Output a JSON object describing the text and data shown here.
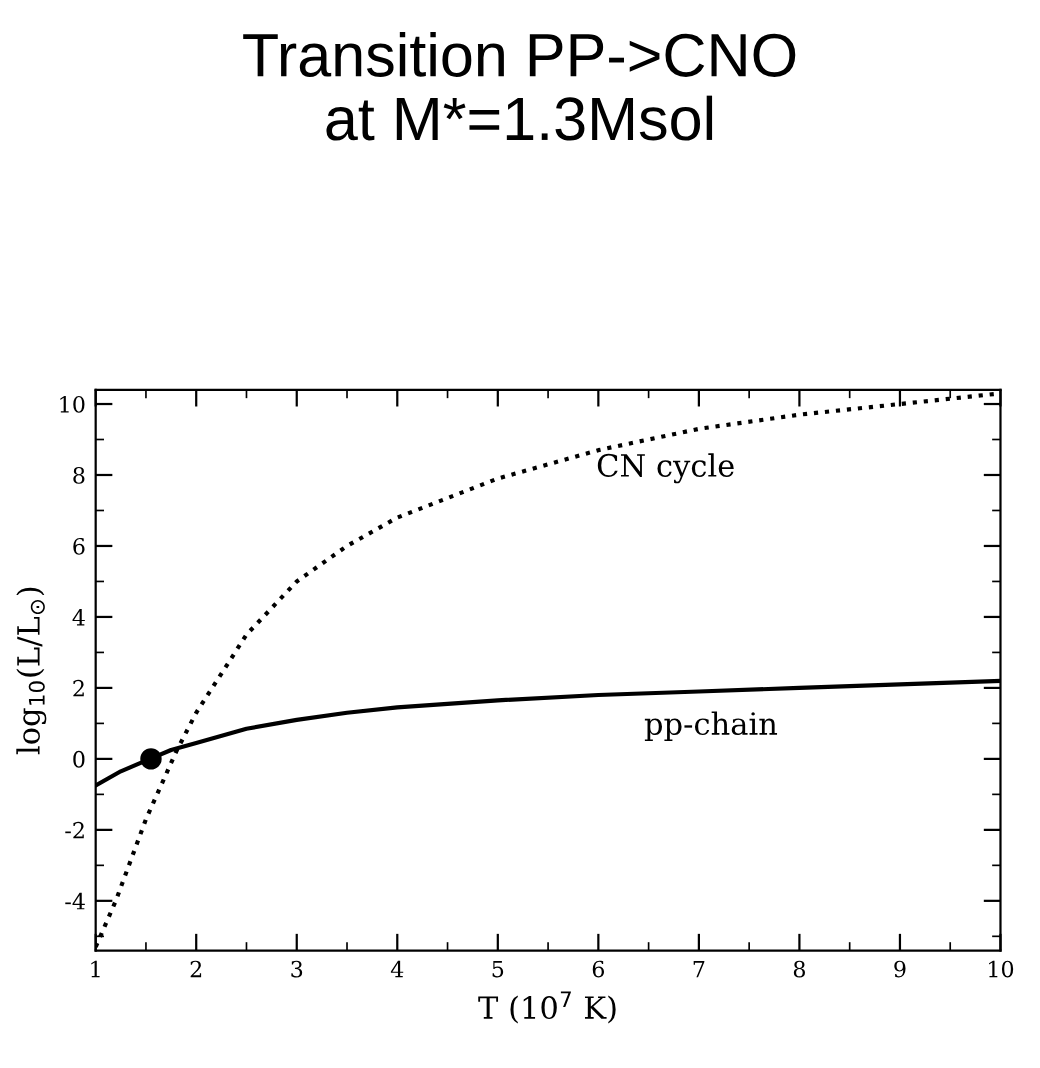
{
  "chart_data": {
    "type": "line",
    "title": "Transition PP->CNO\nat M*=1.3Msol",
    "xlabel": "T (10$^{7}$ K)",
    "ylabel": "log$_{10}$(L/L$_{⊙}$)",
    "xlim": [
      1,
      10
    ],
    "ylim": [
      -5.4,
      10.4
    ],
    "xticks": [
      1,
      2,
      3,
      4,
      5,
      6,
      7,
      8,
      9,
      10
    ],
    "yticks": [
      -4,
      -2,
      0,
      2,
      4,
      6,
      8,
      10
    ],
    "grid": false,
    "legend": false,
    "series": [
      {
        "name": "pp-chain",
        "color": "#000000",
        "line_style": "solid",
        "marker": "none",
        "x": [
          1,
          1.25,
          1.5,
          1.75,
          2,
          2.5,
          3,
          3.5,
          4,
          5,
          6,
          7,
          8,
          9,
          10
        ],
        "values": [
          -0.75,
          -0.35,
          -0.05,
          0.25,
          0.45,
          0.85,
          1.1,
          1.3,
          1.45,
          1.65,
          1.8,
          1.9,
          2.0,
          2.1,
          2.2
        ]
      },
      {
        "name": "CN cycle",
        "color": "#000000",
        "line_style": "dotted",
        "marker": "none",
        "x": [
          1,
          1.2,
          1.5,
          1.8,
          2,
          2.5,
          3,
          3.5,
          4,
          5,
          6,
          7,
          8,
          9,
          10
        ],
        "values": [
          -5.3,
          -4.0,
          -1.7,
          0.2,
          1.3,
          3.5,
          5.0,
          6.0,
          6.8,
          7.9,
          8.7,
          9.3,
          9.7,
          10.0,
          10.3
        ]
      },
      {
        "type": "scatter",
        "color": "#000000",
        "marker": "circle",
        "x": [
          1.55
        ],
        "values": [
          0
        ]
      }
    ]
  }
}
